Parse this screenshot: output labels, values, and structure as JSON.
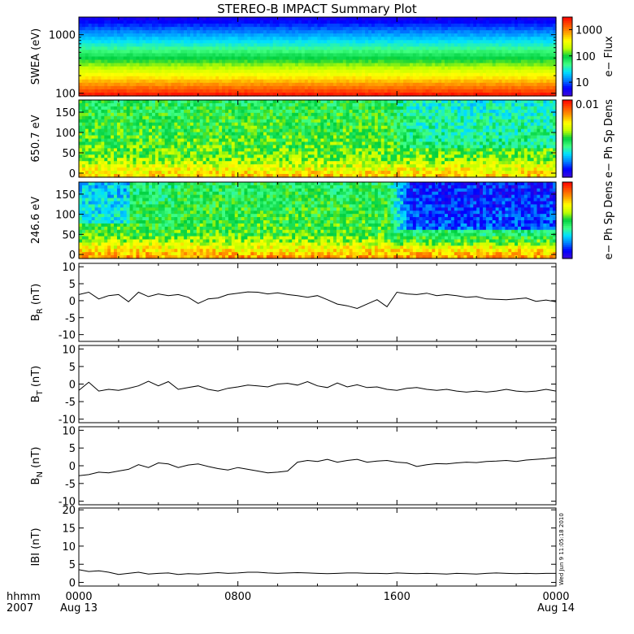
{
  "chart_data": {
    "type": "multi-panel time series (spectrograms + line plots)",
    "title": "STEREO-B IMPACT Summary Plot",
    "time_axis": {
      "label_row1": "hhmm",
      "label_row2": "2007",
      "ticks": [
        {
          "hours": 0,
          "time": "0000",
          "date": "Aug 13"
        },
        {
          "hours": 8,
          "time": "0800",
          "date": ""
        },
        {
          "hours": 16,
          "time": "1600",
          "date": ""
        },
        {
          "hours": 24,
          "time": "0000",
          "date": "Aug 14"
        }
      ],
      "range_hours": [
        0,
        24
      ]
    },
    "spectrograms": [
      {
        "id": "swea",
        "ylabel": "SWEA (eV)",
        "scale": "log",
        "ylim": [
          90,
          2000
        ],
        "yticks": [
          {
            "value": 100,
            "label": "100"
          },
          {
            "value": 1000,
            "label": "1000"
          }
        ],
        "colorbar": {
          "label": "e− Flux",
          "ticks": [
            "1000",
            "100",
            "10"
          ],
          "tick_values": [
            1000,
            100,
            10
          ],
          "range": [
            3,
            3000
          ]
        },
        "description_bands_high_to_low": [
          "blue",
          "cyan",
          "green",
          "yellow",
          "orange",
          "red"
        ]
      },
      {
        "id": "pad650",
        "ylabel": "650.7 eV",
        "scale": "linear",
        "ylim": [
          -10,
          180
        ],
        "yticks": [
          {
            "value": 0,
            "label": "0"
          },
          {
            "value": 50,
            "label": "50"
          },
          {
            "value": 100,
            "label": "100"
          },
          {
            "value": 150,
            "label": "150"
          }
        ],
        "colorbar": {
          "label": "e− Ph Sp Dens",
          "ticks": [
            "0.01"
          ]
        }
      },
      {
        "id": "pad246",
        "ylabel": "246.6 eV",
        "scale": "linear",
        "ylim": [
          -10,
          180
        ],
        "yticks": [
          {
            "value": 0,
            "label": "0"
          },
          {
            "value": 50,
            "label": "50"
          },
          {
            "value": 100,
            "label": "100"
          },
          {
            "value": 150,
            "label": "150"
          }
        ],
        "colorbar": {
          "label": "e− Ph Sp Dens",
          "ticks": []
        }
      }
    ],
    "series": [
      {
        "ylabel": "B_R (nT)",
        "ylabel_main": "B",
        "ylabel_sub": "R",
        "ylabel_unit": "(nT)",
        "ylim": [
          -12,
          11
        ],
        "yticks": [
          -10,
          -5,
          0,
          5,
          10
        ],
        "x_hours": [
          0,
          0.5,
          1,
          1.5,
          2,
          2.5,
          3,
          3.5,
          4,
          4.5,
          5,
          5.5,
          6,
          6.5,
          7,
          7.5,
          8,
          8.5,
          9,
          9.5,
          10,
          10.5,
          11,
          11.5,
          12,
          12.5,
          13,
          13.5,
          14,
          14.5,
          15,
          15.5,
          16,
          16.5,
          17,
          17.5,
          18,
          18.5,
          19,
          19.5,
          20,
          20.5,
          21,
          21.5,
          22,
          22.5,
          23,
          23.5,
          24
        ],
        "values": [
          1.8,
          2.5,
          0.5,
          1.5,
          1.8,
          -0.3,
          2.5,
          1.2,
          2.0,
          1.5,
          1.8,
          1.0,
          -0.8,
          0.5,
          0.8,
          1.8,
          2.2,
          2.6,
          2.5,
          2.0,
          2.3,
          1.8,
          1.5,
          1.0,
          1.5,
          0.3,
          -1.0,
          -1.5,
          -2.3,
          -1.0,
          0.3,
          -1.8,
          2.5,
          2.0,
          1.8,
          2.2,
          1.5,
          1.8,
          1.5,
          1.0,
          1.2,
          0.5,
          0.4,
          0.3,
          0.5,
          0.8,
          -0.2,
          0.2,
          -0.3
        ]
      },
      {
        "ylabel": "B_T (nT)",
        "ylabel_main": "B",
        "ylabel_sub": "T",
        "ylabel_unit": "(nT)",
        "ylim": [
          -11,
          11
        ],
        "yticks": [
          -10,
          -5,
          0,
          5,
          10
        ],
        "x_hours": [
          0,
          0.5,
          1,
          1.5,
          2,
          2.5,
          3,
          3.5,
          4,
          4.5,
          5,
          5.5,
          6,
          6.5,
          7,
          7.5,
          8,
          8.5,
          9,
          9.5,
          10,
          10.5,
          11,
          11.5,
          12,
          12.5,
          13,
          13.5,
          14,
          14.5,
          15,
          15.5,
          16,
          16.5,
          17,
          17.5,
          18,
          18.5,
          19,
          19.5,
          20,
          20.5,
          21,
          21.5,
          22,
          22.5,
          23,
          23.5,
          24
        ],
        "values": [
          -1.8,
          0.5,
          -2.0,
          -1.5,
          -1.8,
          -1.2,
          -0.5,
          0.8,
          -0.5,
          0.7,
          -1.5,
          -1.0,
          -0.5,
          -1.5,
          -2.0,
          -1.2,
          -0.8,
          -0.3,
          -0.5,
          -0.8,
          0.0,
          0.2,
          -0.3,
          0.7,
          -0.5,
          -1.0,
          0.3,
          -0.8,
          -0.2,
          -1.0,
          -0.8,
          -1.5,
          -1.8,
          -1.2,
          -1.0,
          -1.5,
          -1.8,
          -1.5,
          -2.0,
          -2.3,
          -2.0,
          -2.3,
          -2.0,
          -1.5,
          -2.0,
          -2.2,
          -2.0,
          -1.5,
          -2.0
        ]
      },
      {
        "ylabel": "B_N (nT)",
        "ylabel_main": "B",
        "ylabel_sub": "N",
        "ylabel_unit": "(nT)",
        "ylim": [
          -11,
          11
        ],
        "yticks": [
          -10,
          -5,
          0,
          5,
          10
        ],
        "x_hours": [
          0,
          0.5,
          1,
          1.5,
          2,
          2.5,
          3,
          3.5,
          4,
          4.5,
          5,
          5.5,
          6,
          6.5,
          7,
          7.5,
          8,
          8.5,
          9,
          9.5,
          10,
          10.5,
          11,
          11.5,
          12,
          12.5,
          13,
          13.5,
          14,
          14.5,
          15,
          15.5,
          16,
          16.5,
          17,
          17.5,
          18,
          18.5,
          19,
          19.5,
          20,
          20.5,
          21,
          21.5,
          22,
          22.5,
          23,
          23.5,
          24
        ],
        "values": [
          -2.8,
          -2.5,
          -1.8,
          -2.0,
          -1.5,
          -1.0,
          0.3,
          -0.5,
          0.8,
          0.5,
          -0.5,
          0.2,
          0.5,
          -0.2,
          -0.8,
          -1.2,
          -0.5,
          -1.0,
          -1.5,
          -2.0,
          -1.8,
          -1.5,
          1.0,
          1.5,
          1.2,
          1.8,
          1.0,
          1.5,
          1.8,
          1.0,
          1.3,
          1.5,
          1.0,
          0.8,
          -0.2,
          0.3,
          0.6,
          0.5,
          0.8,
          1.0,
          0.9,
          1.2,
          1.3,
          1.5,
          1.2,
          1.6,
          1.8,
          2.0,
          2.3
        ]
      },
      {
        "ylabel": "|B| (nT)",
        "ylabel_main": "IBI",
        "ylabel_sub": "",
        "ylabel_unit": "(nT)",
        "ylim": [
          -1,
          20.5
        ],
        "yticks": [
          0,
          5,
          10,
          15,
          20
        ],
        "x_hours": [
          0,
          0.5,
          1,
          1.5,
          2,
          2.5,
          3,
          3.5,
          4,
          4.5,
          5,
          5.5,
          6,
          6.5,
          7,
          7.5,
          8,
          8.5,
          9,
          9.5,
          10,
          10.5,
          11,
          11.5,
          12,
          12.5,
          13,
          13.5,
          14,
          14.5,
          15,
          15.5,
          16,
          16.5,
          17,
          17.5,
          18,
          18.5,
          19,
          19.5,
          20,
          20.5,
          21,
          21.5,
          22,
          22.5,
          23,
          23.5,
          24
        ],
        "values": [
          3.5,
          3.0,
          3.2,
          2.8,
          2.2,
          2.5,
          2.8,
          2.3,
          2.5,
          2.6,
          2.2,
          2.4,
          2.3,
          2.5,
          2.7,
          2.5,
          2.6,
          2.8,
          2.8,
          2.6,
          2.5,
          2.6,
          2.7,
          2.6,
          2.5,
          2.4,
          2.5,
          2.6,
          2.6,
          2.5,
          2.5,
          2.4,
          2.6,
          2.5,
          2.4,
          2.5,
          2.4,
          2.3,
          2.5,
          2.4,
          2.3,
          2.5,
          2.6,
          2.5,
          2.4,
          2.5,
          2.4,
          2.5,
          2.5
        ]
      }
    ],
    "timestamp_stamp": "Wed Jun 9 11:05:18 2010"
  },
  "colors": {
    "line": "#000000",
    "colormap": [
      "#3d0ad8",
      "#0000ff",
      "#0080ff",
      "#00e0ff",
      "#40ff80",
      "#00d040",
      "#c0ff00",
      "#ffff00",
      "#ffa000",
      "#ff5000",
      "#ff0000"
    ]
  }
}
